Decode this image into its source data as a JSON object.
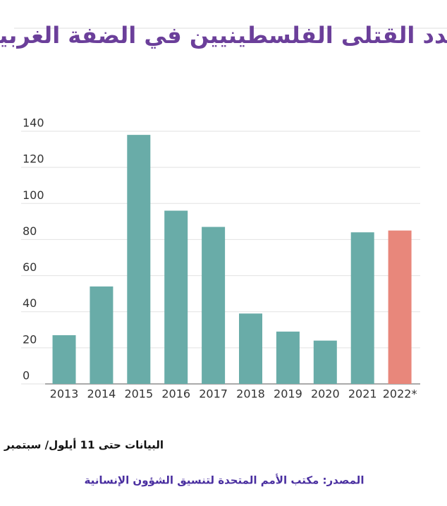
{
  "chart_data": {
    "type": "bar",
    "title": "عدد القتلى الفلسطينيين في الضفة الغربية",
    "categories": [
      "2013",
      "2014",
      "2015",
      "2016",
      "2017",
      "2018",
      "2019",
      "2020",
      "2021",
      "2022*"
    ],
    "values": [
      27,
      54,
      138,
      96,
      87,
      39,
      29,
      24,
      84,
      85
    ],
    "colors": [
      "#69aca8",
      "#69aca8",
      "#69aca8",
      "#69aca8",
      "#69aca8",
      "#69aca8",
      "#69aca8",
      "#69aca8",
      "#69aca8",
      "#e8877b"
    ],
    "ylim": [
      0,
      140
    ],
    "yticks": [
      0,
      20,
      40,
      60,
      80,
      100,
      120,
      140
    ],
    "grid": true,
    "note": "البيانات حتى 11 أيلول/ سبتمبر",
    "source": "المصدر: مكتب الأمم المتحدة لتنسيق الشؤون الإنسانية"
  }
}
